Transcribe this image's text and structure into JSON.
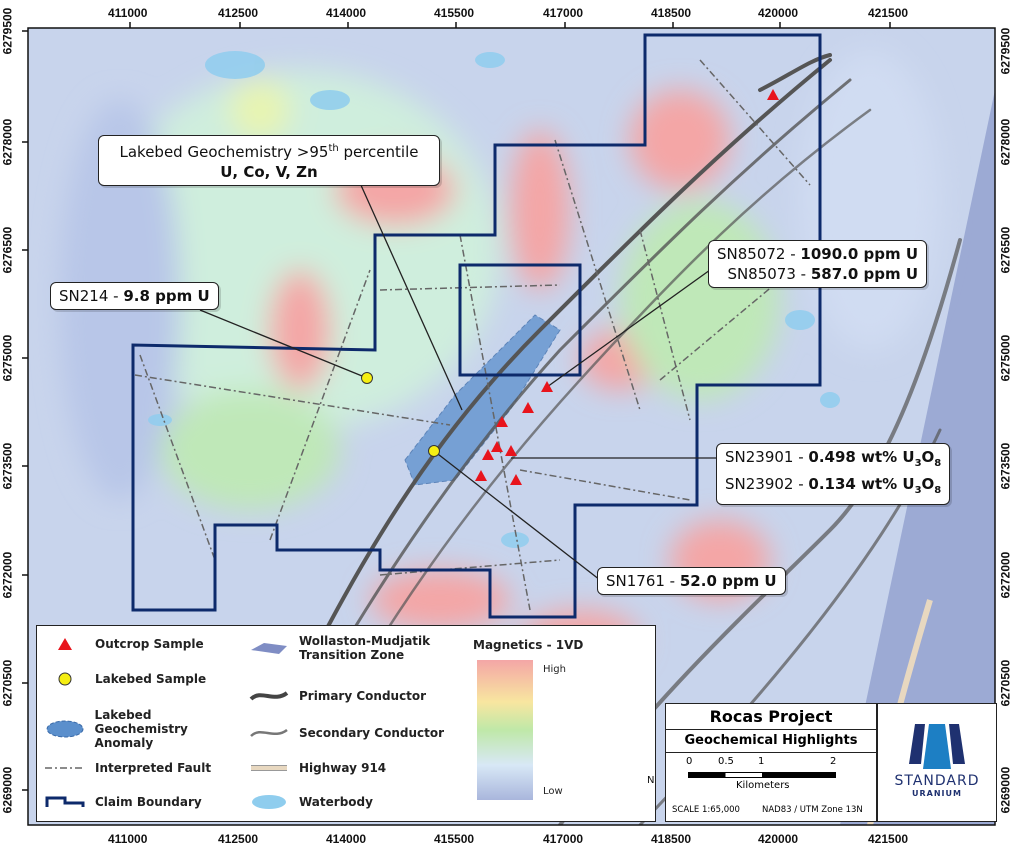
{
  "x_axis_labels": [
    "411000",
    "412500",
    "414000",
    "415500",
    "417000",
    "418500",
    "420000",
    "421500"
  ],
  "y_axis_labels": [
    "6279500",
    "6278000",
    "6276500",
    "6275000",
    "6273500",
    "6272000",
    "6270500",
    "6269000"
  ],
  "callouts": {
    "anomaly": {
      "line1": "Lakebed Geochemistry >95",
      "sup": "th",
      "line1b": " percentile",
      "line2": "U, Co, V, Zn"
    },
    "sn214": {
      "id": "SN214 - ",
      "value": "9.8 ppm U"
    },
    "sn85072": {
      "id": "SN85072 - ",
      "value": "1090.0 ppm U"
    },
    "sn85073": {
      "id": "SN85073 - ",
      "value": "587.0 ppm U"
    },
    "sn23901": {
      "id": "SN23901 - ",
      "value": "0.498 wt% U",
      "sub1": "3",
      "tail1": "O",
      "sub2": "8"
    },
    "sn23902": {
      "id": "SN23902 - ",
      "value": "0.134 wt% U",
      "sub1": "3",
      "tail1": "O",
      "sub2": "8"
    },
    "sn1761": {
      "id": "SN1761 - ",
      "value": "52.0 ppm U"
    }
  },
  "legend": {
    "items": [
      "Outcrop Sample",
      "Lakebed Sample",
      "Lakebed Geochemistry Anomaly",
      "Interpreted Fault",
      "Claim Boundary",
      "Wollaston-Mudjatik Transition Zone",
      "Primary Conductor",
      "Secondary Conductor",
      "Highway 914",
      "Waterbody"
    ],
    "magnetics_title": "Magnetics - 1VD",
    "high": "High",
    "low": "Low"
  },
  "title": {
    "project": "Rocas Project",
    "subtitle": "Geochemical Highlights",
    "scale_ticks": [
      "0",
      "0.5",
      "1",
      "2"
    ],
    "scale_unit": "Kilometers",
    "scale": "SCALE 1:65,000",
    "crs": "NAD83 / UTM Zone 13N",
    "logo_text1": "STANDARD",
    "logo_text2": "URANIUM",
    "north": "N"
  },
  "colors": {
    "claim": "#0d2a6b",
    "outcrop": "#e8141c",
    "lakebed": "#f5ee12",
    "anomaly": "#5b8fcc",
    "high": "#f4a6a6",
    "low": "#a9b6dc"
  }
}
